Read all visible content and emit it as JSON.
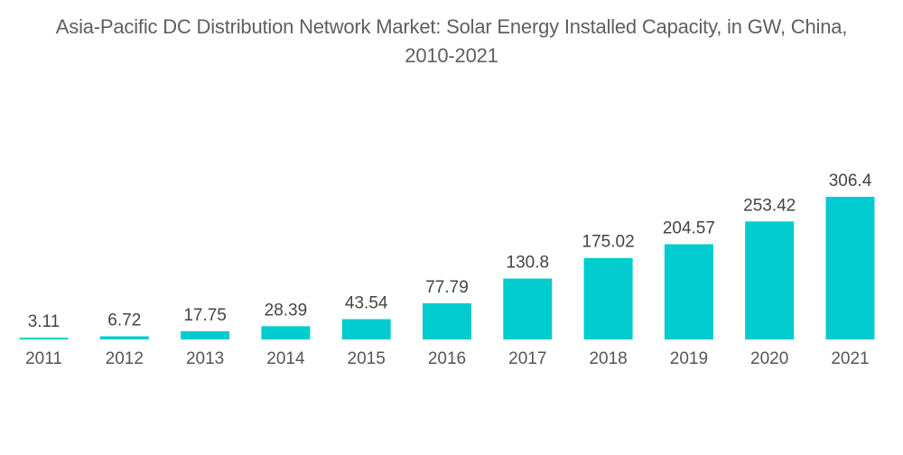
{
  "chart_data": {
    "type": "bar",
    "title": "Asia-Pacific DC Distribution Network Market: Solar Energy Installed Capacity, in GW, China, 2010-2021",
    "title_lines": [
      "Asia-Pacific DC Distribution Network Market: Solar Energy Installed Capacity, in GW, China,",
      "2010-2021"
    ],
    "xlabel": "",
    "ylabel": "",
    "categories": [
      "2011",
      "2012",
      "2013",
      "2014",
      "2015",
      "2016",
      "2017",
      "2018",
      "2019",
      "2020",
      "2021"
    ],
    "values": [
      3.11,
      6.72,
      17.75,
      28.39,
      43.54,
      77.79,
      130.8,
      175.02,
      204.57,
      253.42,
      306.4
    ],
    "labels": [
      "3.11",
      "6.72",
      "17.75",
      "28.39",
      "43.54",
      "77.79",
      "130.8",
      "175.02",
      "204.57",
      "253.42",
      "306.4"
    ],
    "ylim": [
      0,
      306.4
    ],
    "grid": false,
    "legend": "none",
    "bar_color": "#00CCCF"
  }
}
